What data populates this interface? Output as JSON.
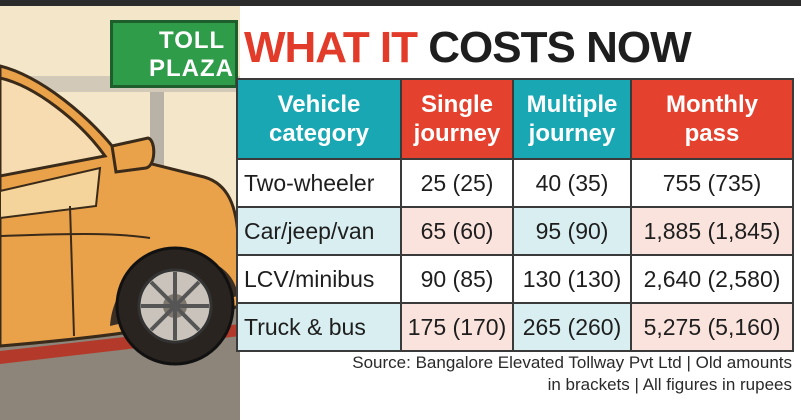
{
  "colors": {
    "headline_red": "#e23b2a",
    "headline_black": "#1e1e1e",
    "teal_header": "#1aa7b4",
    "red_header": "#e4412f",
    "sign_green": "#2f9c4a"
  },
  "illustration": {
    "sign_line1": "TOLL",
    "sign_line2": "PLAZA"
  },
  "headline": {
    "part1": "WHAT IT",
    "part2": "COSTS NOW"
  },
  "table": {
    "headers": [
      {
        "line1": "Vehicle",
        "line2": "category"
      },
      {
        "line1": "Single",
        "line2": "journey"
      },
      {
        "line1": "Multiple",
        "line2": "journey"
      },
      {
        "line1": "Monthly",
        "line2": "pass"
      }
    ],
    "rows": [
      [
        "Two-wheeler",
        "25 (25)",
        "40 (35)",
        "755 (735)"
      ],
      [
        "Car/jeep/van",
        "65 (60)",
        "95 (90)",
        "1,885 (1,845)"
      ],
      [
        "LCV/minibus",
        "90 (85)",
        "130 (130)",
        "2,640 (2,580)"
      ],
      [
        "Truck & bus",
        "175 (170)",
        "265 (260)",
        "5,275 (5,160)"
      ]
    ]
  },
  "source": {
    "line1": "Source: Bangalore Elevated Tollway Pvt Ltd | Old amounts",
    "line2": "in brackets | All figures in rupees"
  }
}
